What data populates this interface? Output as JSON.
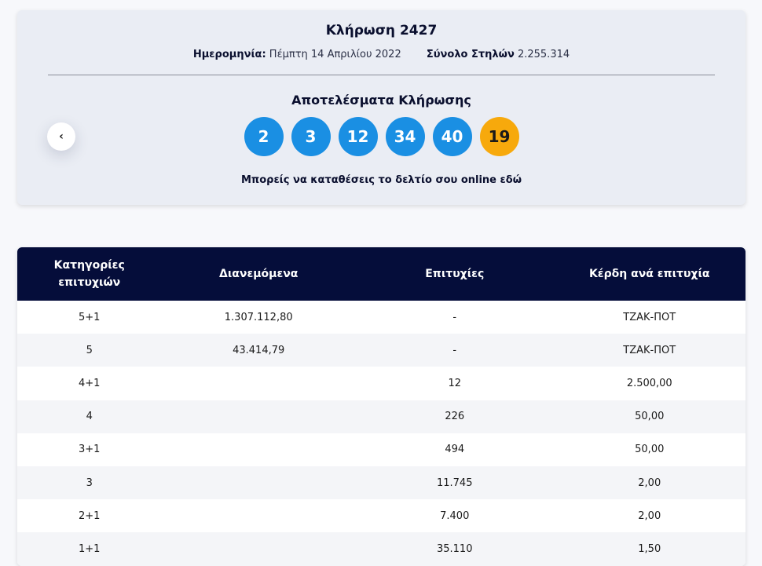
{
  "draw": {
    "title": "Κλήρωση 2427",
    "date_label": "Ημερομηνία:",
    "date_value": "Πέμπτη 14 Απριλίου 2022",
    "columns_label": "Σύνολο Στηλών",
    "columns_value": "2.255.314",
    "results_title": "Αποτελέσματα Κλήρωσης",
    "numbers": [
      "2",
      "3",
      "12",
      "34",
      "40"
    ],
    "joker": "19",
    "prev_icon": "‹",
    "online_text": "Μπορείς να καταθέσεις το δελτίο σου online",
    "online_link": "εδώ"
  },
  "colors": {
    "ball": "#1a8fe3",
    "joker": "#f7a90c",
    "header_bg": "#050d3a"
  },
  "table": {
    "headers": {
      "category": "Κατηγορίες επιτυχιών",
      "distributed": "Διανεμόμενα",
      "winners": "Επιτυχίες",
      "prize": "Κέρδη ανά επιτυχία"
    },
    "rows": [
      {
        "category": "5+1",
        "distributed": "1.307.112,80",
        "winners": "-",
        "prize": "ΤΖΑΚ-ΠΟΤ"
      },
      {
        "category": "5",
        "distributed": "43.414,79",
        "winners": "-",
        "prize": "ΤΖΑΚ-ΠΟΤ"
      },
      {
        "category": "4+1",
        "distributed": "",
        "winners": "12",
        "prize": "2.500,00"
      },
      {
        "category": "4",
        "distributed": "",
        "winners": "226",
        "prize": "50,00"
      },
      {
        "category": "3+1",
        "distributed": "",
        "winners": "494",
        "prize": "50,00"
      },
      {
        "category": "3",
        "distributed": "",
        "winners": "11.745",
        "prize": "2,00"
      },
      {
        "category": "2+1",
        "distributed": "",
        "winners": "7.400",
        "prize": "2,00"
      },
      {
        "category": "1+1",
        "distributed": "",
        "winners": "35.110",
        "prize": "1,50"
      }
    ]
  }
}
